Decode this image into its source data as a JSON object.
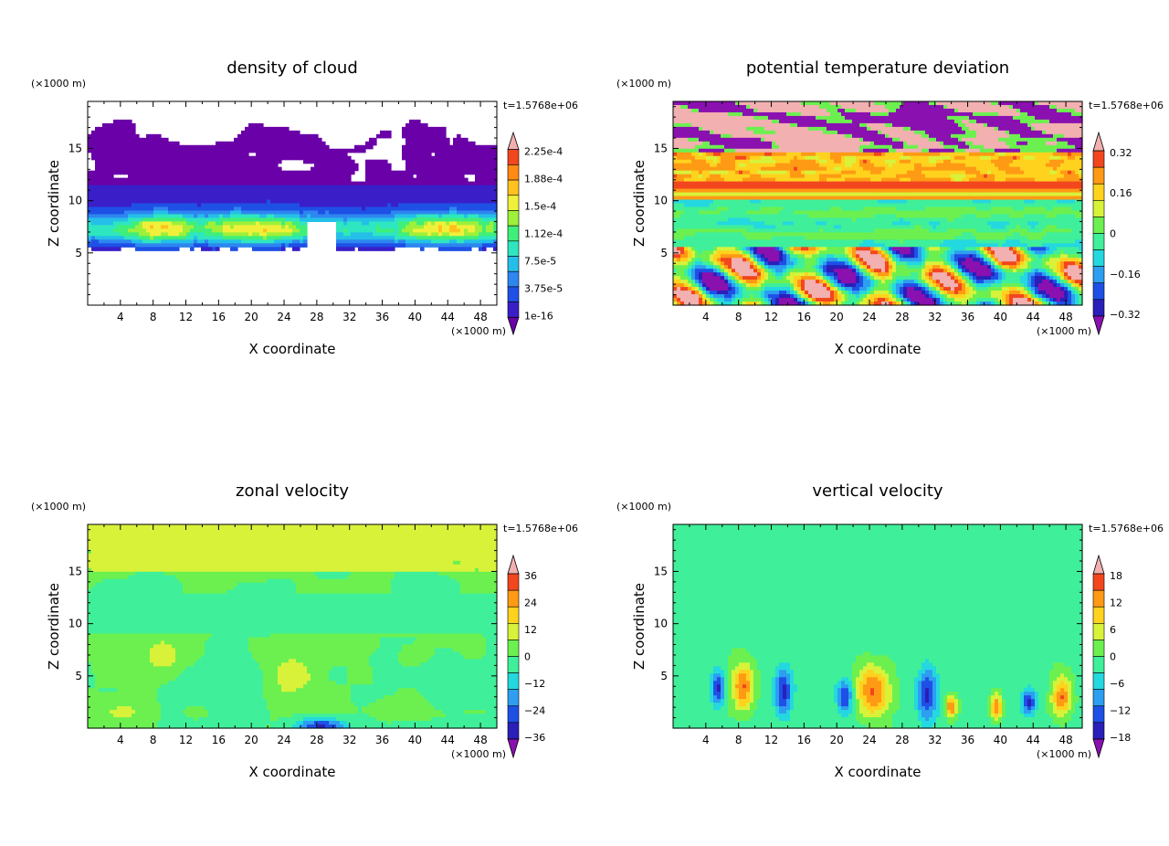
{
  "chart_data": [
    {
      "type": "heatmap",
      "title": "density of cloud",
      "xlabel": "X coordinate",
      "ylabel": "Z coordinate",
      "x_units": "(×1000 m)",
      "y_units": "(×1000 m)",
      "time_label": "t=1.5768e+06",
      "xlim": [
        0,
        50
      ],
      "ylim": [
        0,
        19.5
      ],
      "x_ticks": [
        "4",
        "8",
        "12",
        "16",
        "20",
        "24",
        "28",
        "32",
        "36",
        "40",
        "44",
        "48"
      ],
      "y_ticks": [
        "5",
        "10",
        "15"
      ],
      "colorbar": {
        "labels": [
          "2.25e-4",
          "1.88e-4",
          "1.5e-4",
          "1.12e-4",
          "7.5e-5",
          "3.75e-5",
          "1e-16"
        ],
        "colors": [
          "#6a00a8",
          "#3a1fc8",
          "#1e50e6",
          "#2e86f0",
          "#24bfe8",
          "#2ee6c0",
          "#3fef7a",
          "#9ef03a",
          "#f0f03a",
          "#ffc21e",
          "#ff8a14",
          "#f2461e",
          "#f2b0b0"
        ]
      },
      "field": "cloud",
      "grid": false,
      "legend_position": "right"
    },
    {
      "type": "heatmap",
      "title": "potential temperature deviation",
      "xlabel": "X coordinate",
      "ylabel": "Z coordinate",
      "x_units": "(×1000 m)",
      "y_units": "(×1000 m)",
      "time_label": "t=1.5768e+06",
      "xlim": [
        0,
        50
      ],
      "ylim": [
        0,
        19.5
      ],
      "x_ticks": [
        "4",
        "8",
        "12",
        "16",
        "20",
        "24",
        "28",
        "32",
        "36",
        "40",
        "44",
        "48"
      ],
      "y_ticks": [
        "5",
        "10",
        "15"
      ],
      "colorbar": {
        "labels": [
          "0.32",
          "0.16",
          "0",
          "−0.16",
          "−0.32"
        ],
        "colors": [
          "#8a10b0",
          "#2a1fb8",
          "#1e50e6",
          "#2e9ef0",
          "#24d8e0",
          "#3fef9a",
          "#6cf050",
          "#d8f23a",
          "#ffd21e",
          "#ff9a14",
          "#f2461e",
          "#f2b0b0"
        ]
      },
      "field": "theta",
      "grid": false,
      "legend_position": "right"
    },
    {
      "type": "heatmap",
      "title": "zonal velocity",
      "xlabel": "X coordinate",
      "ylabel": "Z coordinate",
      "x_units": "(×1000 m)",
      "y_units": "(×1000 m)",
      "time_label": "t=1.5768e+06",
      "xlim": [
        0,
        50
      ],
      "ylim": [
        0,
        19.5
      ],
      "x_ticks": [
        "4",
        "8",
        "12",
        "16",
        "20",
        "24",
        "28",
        "32",
        "36",
        "40",
        "44",
        "48"
      ],
      "y_ticks": [
        "5",
        "10",
        "15"
      ],
      "colorbar": {
        "labels": [
          "36",
          "24",
          "12",
          "0",
          "−12",
          "−24",
          "−36"
        ],
        "colors": [
          "#8a10b0",
          "#2a1fb8",
          "#1e50e6",
          "#2e9ef0",
          "#24d8e0",
          "#3fef9a",
          "#6cf050",
          "#d8f23a",
          "#ffd21e",
          "#ff9a14",
          "#f2461e",
          "#f2b0b0"
        ]
      },
      "field": "u",
      "grid": false,
      "legend_position": "right"
    },
    {
      "type": "heatmap",
      "title": "vertical velocity",
      "xlabel": "X coordinate",
      "ylabel": "Z coordinate",
      "x_units": "(×1000 m)",
      "y_units": "(×1000 m)",
      "time_label": "t=1.5768e+06",
      "xlim": [
        0,
        50
      ],
      "ylim": [
        0,
        19.5
      ],
      "x_ticks": [
        "4",
        "8",
        "12",
        "16",
        "20",
        "24",
        "28",
        "32",
        "36",
        "40",
        "44",
        "48"
      ],
      "y_ticks": [
        "5",
        "10",
        "15"
      ],
      "colorbar": {
        "labels": [
          "18",
          "12",
          "6",
          "0",
          "−6",
          "−12",
          "−18"
        ],
        "colors": [
          "#8a10b0",
          "#2a1fb8",
          "#1e50e6",
          "#2e9ef0",
          "#24d8e0",
          "#3fef9a",
          "#6cf050",
          "#d8f23a",
          "#ffd21e",
          "#ff9a14",
          "#f2461e",
          "#f2b0b0"
        ]
      },
      "field": "w",
      "grid": false,
      "legend_position": "right"
    }
  ]
}
